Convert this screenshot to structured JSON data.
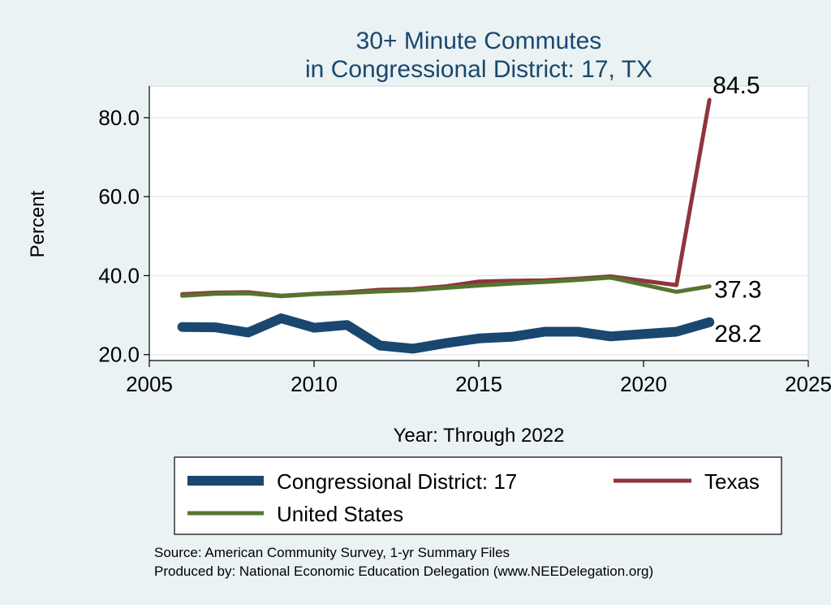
{
  "chart_data": {
    "type": "line",
    "title": "30+ Minute Commutes",
    "subtitle": "in Congressional District:  17, TX",
    "xlabel": "Year: Through 2022",
    "ylabel": "Percent",
    "xlim": [
      2005,
      2025
    ],
    "ylim": [
      18.5,
      88
    ],
    "x_ticks": [
      2005,
      2010,
      2015,
      2020,
      2025
    ],
    "x_tick_labels": [
      "2005",
      "2010",
      "2015",
      "2020",
      "2025"
    ],
    "y_ticks": [
      20,
      40,
      60,
      80
    ],
    "y_tick_labels": [
      "20.0",
      "40.0",
      "60.0",
      "80.0"
    ],
    "grid": true,
    "legend_position": "bottom",
    "x": [
      2006,
      2007,
      2008,
      2009,
      2010,
      2011,
      2012,
      2013,
      2014,
      2015,
      2016,
      2017,
      2018,
      2019,
      2020,
      2021,
      2022
    ],
    "series": [
      {
        "name": "Congressional District:  17",
        "color": "#1a476f",
        "values": [
          27.0,
          26.9,
          25.6,
          29.2,
          26.8,
          27.5,
          22.3,
          21.5,
          22.9,
          24.1,
          24.5,
          25.8,
          25.8,
          24.6,
          25.2,
          25.8,
          28.2
        ],
        "end_label": "28.2"
      },
      {
        "name": "Texas",
        "color": "#90353b",
        "values": [
          35.3,
          35.7,
          35.8,
          34.9,
          35.4,
          35.8,
          36.4,
          36.6,
          37.3,
          38.5,
          38.7,
          38.8,
          39.2,
          39.8,
          null,
          37.6,
          84.5
        ],
        "end_label": "84.5"
      },
      {
        "name": "United States",
        "color": "#55752f",
        "values": [
          34.9,
          35.4,
          35.5,
          34.8,
          35.3,
          35.6,
          36.0,
          36.3,
          36.9,
          37.5,
          38.0,
          38.4,
          38.9,
          39.5,
          null,
          35.9,
          37.3
        ],
        "end_label": "37.3"
      }
    ],
    "source_lines": [
      "Source: American Community Survey, 1-yr Summary Files",
      "Produced by: National Economic Education Delegation (www.NEEDelegation.org)"
    ]
  }
}
